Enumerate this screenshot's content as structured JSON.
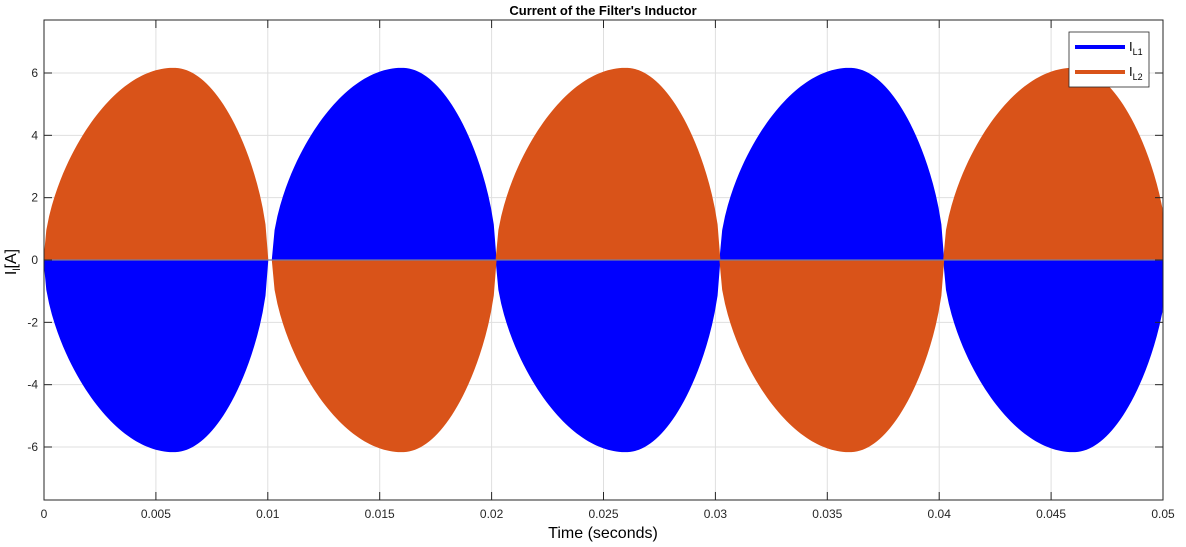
{
  "chart_data": {
    "type": "area",
    "title": "Current of the Filter's Inductor",
    "xlabel": "Time (seconds)",
    "ylabel_main": "I",
    "ylabel_sub": "l",
    "ylabel_unit": "[A]",
    "xlim": [
      0,
      0.05
    ],
    "ylim": [
      -7.7,
      7.7
    ],
    "xticks": [
      0,
      0.005,
      0.01,
      0.015,
      0.02,
      0.025,
      0.03,
      0.035,
      0.04,
      0.045,
      0.05
    ],
    "xtick_labels": [
      "0",
      "0.005",
      "0.01",
      "0.015",
      "0.02",
      "0.025",
      "0.03",
      "0.035",
      "0.04",
      "0.045",
      "0.05"
    ],
    "yticks": [
      -6,
      -4,
      -2,
      0,
      2,
      4,
      6
    ],
    "ytick_labels": [
      "-6",
      "-4",
      "-2",
      "0",
      "2",
      "4",
      "6"
    ],
    "grid": true,
    "legend_position": "top-right",
    "envelope": {
      "description_values": "half-cycle lobes of +/- amplitude, period 0.02 s",
      "half_period": 0.01,
      "peak": 6.15,
      "peak_time_in_half_cycle": 0.0058
    },
    "series": [
      {
        "name_main": "I",
        "name_sub": "L1",
        "color": "#0000FF",
        "lobes": [
          {
            "t0": 0.0,
            "t1": 0.0102,
            "sign": -1
          },
          {
            "t0": 0.0102,
            "t1": 0.0202,
            "sign": 1
          },
          {
            "t0": 0.0202,
            "t1": 0.0302,
            "sign": -1
          },
          {
            "t0": 0.0302,
            "t1": 0.0402,
            "sign": 1
          },
          {
            "t0": 0.0402,
            "t1": 0.05,
            "sign": -1
          }
        ]
      },
      {
        "name_main": "I",
        "name_sub": "L2",
        "color": "#D95319",
        "lobes": [
          {
            "t0": 0.0,
            "t1": 0.0102,
            "sign": 1
          },
          {
            "t0": 0.0102,
            "t1": 0.0202,
            "sign": -1
          },
          {
            "t0": 0.0202,
            "t1": 0.0302,
            "sign": 1
          },
          {
            "t0": 0.0302,
            "t1": 0.0402,
            "sign": -1
          },
          {
            "t0": 0.0402,
            "t1": 0.05,
            "sign": 1
          }
        ]
      }
    ]
  }
}
